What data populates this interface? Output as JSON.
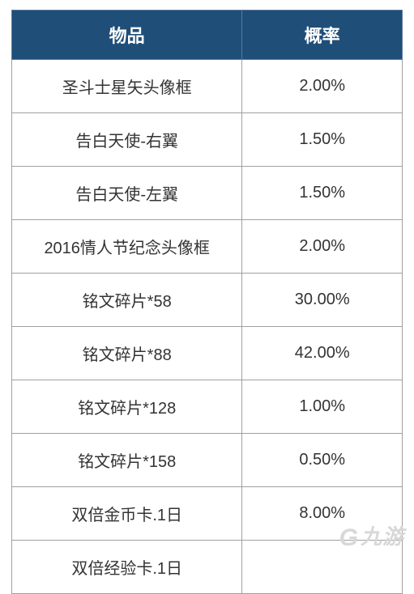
{
  "table": {
    "columns": [
      "物品",
      "概率"
    ],
    "rows": [
      [
        "圣斗士星矢头像框",
        "2.00%"
      ],
      [
        "告白天使-右翼",
        "1.50%"
      ],
      [
        "告白天使-左翼",
        "1.50%"
      ],
      [
        "2016情人节纪念头像框",
        "2.00%"
      ],
      [
        "铭文碎片*58",
        "30.00%"
      ],
      [
        "铭文碎片*88",
        "42.00%"
      ],
      [
        "铭文碎片*128",
        "1.00%"
      ],
      [
        "铭文碎片*158",
        "0.50%"
      ],
      [
        "双倍金币卡.1日",
        "8.00%"
      ],
      [
        "双倍经验卡.1日",
        ""
      ]
    ],
    "header_bg": "#1f4e79",
    "header_text_color": "#ffffff",
    "border_color": "#a0a0a0",
    "cell_text_color": "#333333",
    "header_fontsize": 22,
    "cell_fontsize": 20,
    "col_widths": [
      "59%",
      "41%"
    ]
  },
  "watermark": {
    "text": "九游",
    "icon": "G",
    "color": "#d8d8d8"
  }
}
